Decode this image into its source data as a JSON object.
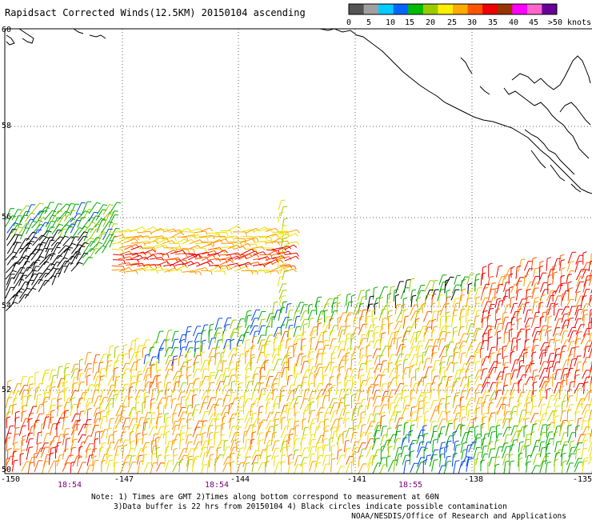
{
  "title": "Rapidsact Corrected Winds(12.5KM) 20150104 ascending",
  "legend": {
    "colors": [
      "#555555",
      "#a0a0a0",
      "#00ccff",
      "#0066ff",
      "#00bb00",
      "#99cc00",
      "#ffee00",
      "#ffaa00",
      "#ff5500",
      "#ee0000",
      "#993300",
      "#ff00ff",
      "#ff66cc",
      "#660099"
    ],
    "labels": [
      "0",
      "5",
      "10",
      "15",
      "20",
      "25",
      "30",
      "35",
      "40",
      "45",
      ">50 knots"
    ]
  },
  "lat_labels": [
    "60",
    "58",
    "56",
    "54",
    "52",
    "50"
  ],
  "lon_labels": [
    "-150",
    "-147",
    "-144",
    "-141",
    "-138",
    "-135"
  ],
  "time_labels": [
    "18:54",
    "18:54",
    "18:55"
  ],
  "notes": [
    "Note: 1) Times are GMT 2)Times along bottom correspond to measurement at 60N",
    "3)Data buffer is 22 hrs from 20150104 4) Black circles indicate possible contamination",
    "NOAA/NESDIS/Office of Research and Applications"
  ],
  "colors": {
    "grid": "#666666",
    "coast": "#000000",
    "time_label": "#800080"
  },
  "wind_palette": {
    "calm": "#555555",
    "blue": "#0044ee",
    "green": "#00aa00",
    "yellowgreen": "#99cc00",
    "yellow": "#eedd00",
    "orange": "#ff9900",
    "darkorange": "#ff5500",
    "red": "#ee0000",
    "black": "#000000"
  }
}
